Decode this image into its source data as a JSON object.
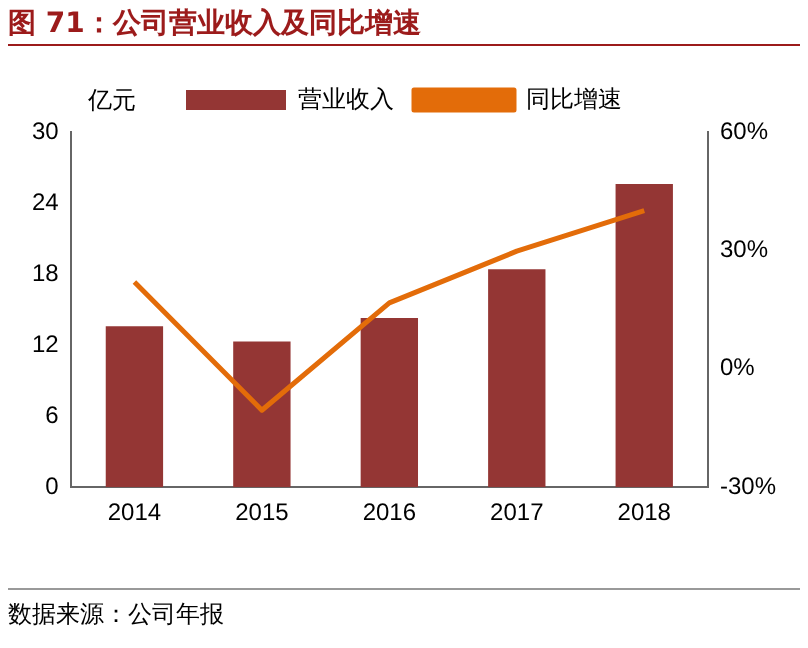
{
  "chart_data": {
    "type": "bar",
    "title": "图 71：公司营业收入及同比增速",
    "ylabel": "亿元",
    "categories": [
      "2014",
      "2015",
      "2016",
      "2017",
      "2018"
    ],
    "series": [
      {
        "name": "营业收入",
        "color": "#943634",
        "values": [
          13.6,
          12.3,
          14.3,
          18.4,
          25.6
        ]
      },
      {
        "name": "同比增速",
        "type": "line",
        "axis": "y2",
        "color": "#e36c09",
        "marker": "none",
        "values": [
          22,
          -10.5,
          16.7,
          29.8,
          40.1
        ]
      }
    ],
    "ylim": [
      0,
      30
    ],
    "yticks": [
      0,
      6,
      12,
      18,
      24,
      30
    ],
    "y2lim": [
      -30,
      60
    ],
    "y2ticks": [
      {
        "value": -30,
        "label": "-30%"
      },
      {
        "value": 0,
        "label": "0%"
      },
      {
        "value": 30,
        "label": "30%"
      },
      {
        "value": 60,
        "label": "60%"
      }
    ],
    "grid": false,
    "legend": "top",
    "annotations": [
      "数据来源：公司年报"
    ]
  }
}
